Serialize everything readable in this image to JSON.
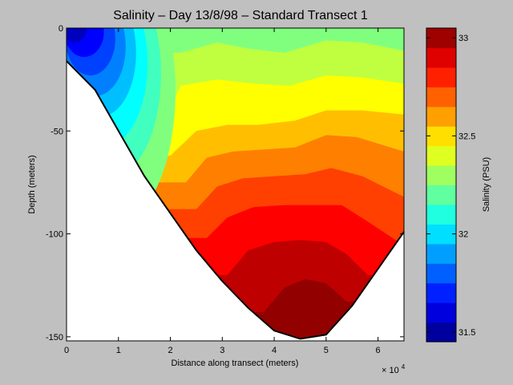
{
  "chart_data": {
    "type": "heatmap",
    "subtype": "filled-contour",
    "title": "Salinity – Day 13/8/98 – Standard Transect 1",
    "xlabel": "Distance along transect (meters)",
    "ylabel": "Depth (meters)",
    "x_multiplier_label": "× 10",
    "x_multiplier_exponent": "4",
    "xlim": [
      0,
      65000
    ],
    "ylim": [
      -152,
      0
    ],
    "x_ticks": [
      0,
      1,
      2,
      3,
      4,
      5,
      6
    ],
    "y_ticks": [
      0,
      -50,
      -100,
      -150
    ],
    "colorbar": {
      "label": "Salinity (PSU)",
      "range": [
        31.45,
        33.05
      ],
      "ticks": [
        31.5,
        32,
        32.5,
        33
      ],
      "levels": 16
    },
    "seabed_profile": {
      "x": [
        0,
        5500,
        10000,
        15000,
        20000,
        25000,
        30000,
        35000,
        40000,
        45000,
        50000,
        55000,
        60000,
        65000
      ],
      "depth": [
        -16,
        -30,
        -50,
        -72,
        -90,
        -108,
        -123,
        -136,
        -147,
        -151,
        -149,
        -135,
        -117,
        -99
      ]
    },
    "salinity_contours": [
      {
        "salinity": 32.35,
        "x": [
          22000,
          29000,
          35000,
          42000,
          50000,
          57000,
          65000
        ],
        "depth": [
          -12,
          -7,
          -10,
          -12,
          -6,
          -7,
          -11
        ]
      },
      {
        "salinity": 32.45,
        "x": [
          17000,
          22000,
          29000,
          36000,
          43000,
          50000,
          57000,
          65000
        ],
        "depth": [
          -55,
          -28,
          -25,
          -27,
          -28,
          -23,
          -24,
          -27
        ]
      },
      {
        "salinity": 32.55,
        "x": [
          20000,
          25000,
          31000,
          37000,
          44000,
          50000,
          57000,
          65000
        ],
        "depth": [
          -62,
          -50,
          -47,
          -47,
          -45,
          -40,
          -40,
          -42
        ]
      },
      {
        "salinity": 32.65,
        "x": [
          23000,
          27000,
          32000,
          38000,
          44000,
          50000,
          56000,
          65000
        ],
        "depth": [
          -75,
          -63,
          -60,
          -59,
          -58,
          -52,
          -53,
          -60
        ]
      },
      {
        "salinity": 32.75,
        "x": [
          25000,
          29000,
          34000,
          40000,
          46000,
          51000,
          57000,
          65000
        ],
        "depth": [
          -88,
          -77,
          -73,
          -72,
          -71,
          -68,
          -72,
          -82
        ]
      },
      {
        "salinity": 32.85,
        "x": [
          27000,
          31000,
          36000,
          42000,
          48000,
          53000,
          58000,
          64000
        ],
        "depth": [
          -102,
          -92,
          -87,
          -86,
          -86,
          -86,
          -94,
          -104
        ]
      },
      {
        "salinity": 32.95,
        "x": [
          31000,
          35000,
          40000,
          45000,
          50000,
          54000,
          58000
        ],
        "depth": [
          -120,
          -108,
          -104,
          -103,
          -104,
          -110,
          -120
        ]
      },
      {
        "salinity": 33.02,
        "x": [
          38000,
          42000,
          46000,
          50000,
          54000
        ],
        "depth": [
          -138,
          -126,
          -122,
          -124,
          -133
        ]
      }
    ]
  }
}
